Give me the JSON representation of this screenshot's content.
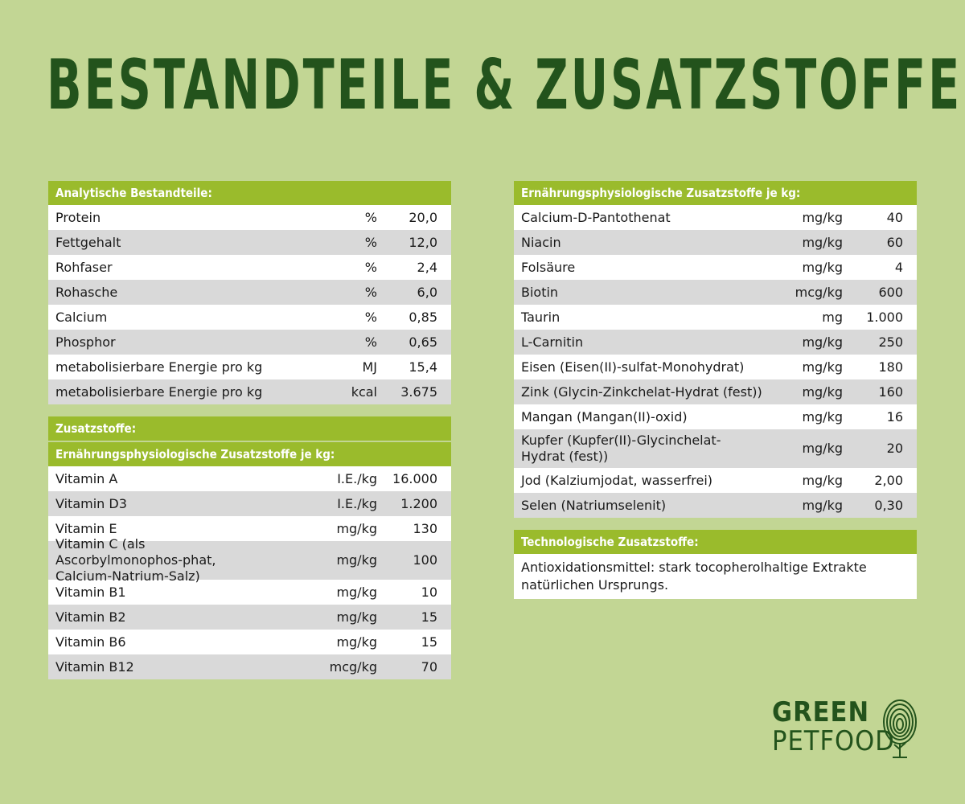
{
  "title": "Bestandteile & Zusatzstoffe",
  "left": {
    "analytic_header": "Analytische Bestandteile:",
    "analytic_rows": [
      {
        "name": "Protein",
        "unit": "%",
        "value": "20,0"
      },
      {
        "name": "Fettgehalt",
        "unit": "%",
        "value": "12,0"
      },
      {
        "name": "Rohfaser",
        "unit": "%",
        "value": "2,4"
      },
      {
        "name": "Rohasche",
        "unit": "%",
        "value": "6,0"
      },
      {
        "name": "Calcium",
        "unit": "%",
        "value": "0,85"
      },
      {
        "name": "Phosphor",
        "unit": "%",
        "value": "0,65"
      },
      {
        "name": "metabolisierbare Energie pro kg",
        "unit": "MJ",
        "value": "15,4"
      },
      {
        "name": "metabolisierbare Energie pro kg",
        "unit": "kcal",
        "value": "3.675"
      }
    ],
    "additives_header": "Zusatzstoffe:",
    "nutri_header": "Ernährungsphysiologische Zusatzstoffe je kg:",
    "vitamin_rows": [
      {
        "name": "Vitamin A",
        "unit": "I.E./kg",
        "value": "16.000"
      },
      {
        "name": "Vitamin D3",
        "unit": "I.E./kg",
        "value": "1.200"
      },
      {
        "name": "Vitamin E",
        "unit": "mg/kg",
        "value": "130"
      },
      {
        "name": "Vitamin C (als Ascorbylmonophos-phat, Calcium-Natrium-Salz)",
        "unit": "mg/kg",
        "value": "100"
      },
      {
        "name": "Vitamin B1",
        "unit": "mg/kg",
        "value": "10"
      },
      {
        "name": "Vitamin B2",
        "unit": "mg/kg",
        "value": "15"
      },
      {
        "name": "Vitamin B6",
        "unit": "mg/kg",
        "value": "15"
      },
      {
        "name": "Vitamin B12",
        "unit": "mcg/kg",
        "value": "70"
      }
    ]
  },
  "right": {
    "nutri_header": "Ernährungsphysiologische Zusatzstoffe je kg:",
    "rows": [
      {
        "name": "Calcium-D-Pantothenat",
        "unit": "mg/kg",
        "value": "40"
      },
      {
        "name": "Niacin",
        "unit": "mg/kg",
        "value": "60"
      },
      {
        "name": "Folsäure",
        "unit": "mg/kg",
        "value": "4"
      },
      {
        "name": "Biotin",
        "unit": "mcg/kg",
        "value": "600"
      },
      {
        "name": "Taurin",
        "unit": "mg",
        "value": "1.000"
      },
      {
        "name": "L-Carnitin",
        "unit": "mg/kg",
        "value": "250"
      },
      {
        "name": "Eisen (Eisen(II)-sulfat-Monohydrat)",
        "unit": "mg/kg",
        "value": "180"
      },
      {
        "name": "Zink (Glycin-Zinkchelat-Hydrat (fest))",
        "unit": "mg/kg",
        "value": "160"
      },
      {
        "name": "Mangan (Mangan(II)-oxid)",
        "unit": "mg/kg",
        "value": "16"
      },
      {
        "name": "Kupfer (Kupfer(II)-Glycinchelat-Hydrat (fest))",
        "unit": "mg/kg",
        "value": "20"
      },
      {
        "name": "Jod (Kalziumjodat, wasserfrei)",
        "unit": "mg/kg",
        "value": "2,00"
      },
      {
        "name": "Selen (Natriumselenit)",
        "unit": "mg/kg",
        "value": "0,30"
      }
    ],
    "tech_header": "Technologische Zusatzstoffe:",
    "tech_text": "Antioxidationsmittel: stark tocopherolhaltige Extrakte natürlichen Ursprungs."
  },
  "logo": {
    "line1": "GREEN",
    "line2": "PETFOOD",
    "icon": "fingerprint-tree-icon",
    "color": "#23531c"
  },
  "colors": {
    "background": "#c2d694",
    "header": "#9abb2c",
    "row_light": "#ffffff",
    "row_dark": "#d9d9d9",
    "title": "#23531c"
  }
}
